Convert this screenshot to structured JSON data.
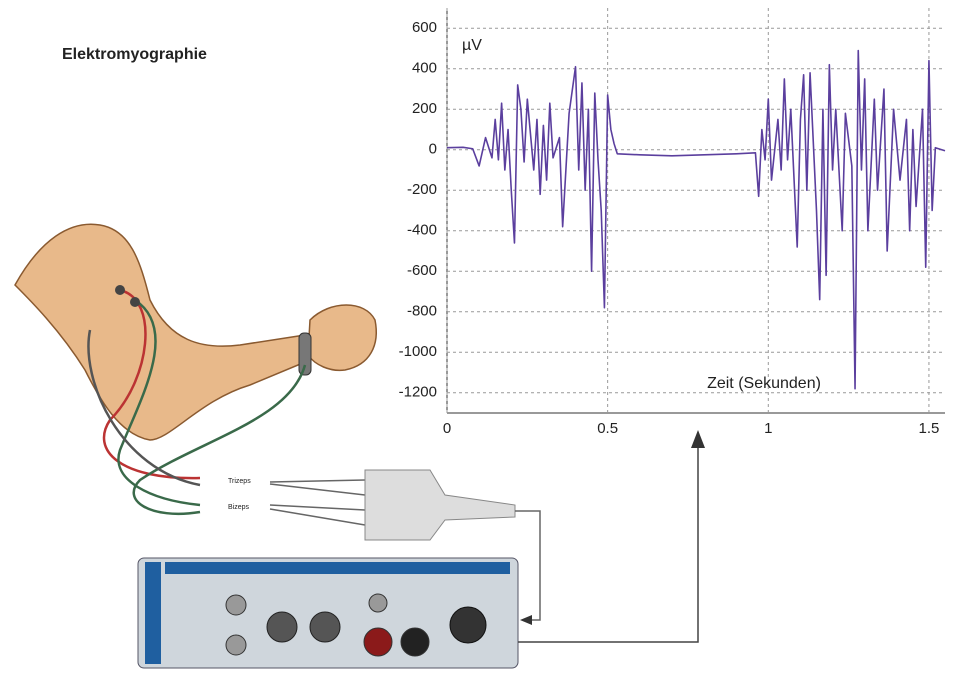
{
  "chart_data": {
    "type": "line",
    "title": "Elektromyographie",
    "y_label": "µV",
    "x_label": "Zeit (Sekunden)",
    "annotations": [
      "Trizeps",
      "Bizeps"
    ],
    "color": "#5b3f9e",
    "grid": true,
    "xlim": [
      0,
      1.55
    ],
    "ylim": [
      -1300,
      700
    ],
    "xticks": [
      0,
      0.5,
      1,
      1.5
    ],
    "yticks": [
      600,
      400,
      200,
      0,
      -200,
      -400,
      -600,
      -800,
      -1000,
      -1200
    ],
    "x": [
      0,
      0.05,
      0.08,
      0.1,
      0.12,
      0.14,
      0.15,
      0.16,
      0.17,
      0.18,
      0.19,
      0.2,
      0.21,
      0.22,
      0.23,
      0.24,
      0.25,
      0.27,
      0.28,
      0.29,
      0.3,
      0.31,
      0.32,
      0.33,
      0.35,
      0.36,
      0.37,
      0.38,
      0.4,
      0.41,
      0.42,
      0.43,
      0.44,
      0.45,
      0.46,
      0.47,
      0.48,
      0.49,
      0.5,
      0.51,
      0.52,
      0.53,
      0.6,
      0.7,
      0.8,
      0.9,
      0.96,
      0.97,
      0.98,
      0.99,
      1.0,
      1.01,
      1.03,
      1.04,
      1.05,
      1.06,
      1.07,
      1.09,
      1.1,
      1.11,
      1.12,
      1.13,
      1.15,
      1.16,
      1.17,
      1.18,
      1.19,
      1.2,
      1.21,
      1.23,
      1.24,
      1.26,
      1.27,
      1.28,
      1.29,
      1.3,
      1.31,
      1.33,
      1.34,
      1.36,
      1.37,
      1.39,
      1.41,
      1.43,
      1.44,
      1.45,
      1.46,
      1.48,
      1.49,
      1.5,
      1.51,
      1.52,
      1.55
    ],
    "values": [
      10,
      12,
      5,
      -80,
      60,
      -40,
      150,
      -50,
      230,
      -100,
      100,
      -200,
      -460,
      320,
      200,
      -60,
      250,
      -100,
      150,
      -220,
      120,
      -150,
      230,
      -40,
      60,
      -380,
      -100,
      180,
      410,
      -100,
      330,
      -200,
      200,
      -600,
      280,
      -50,
      -300,
      -780,
      270,
      100,
      30,
      -20,
      -25,
      -30,
      -25,
      -20,
      -15,
      -230,
      100,
      -50,
      250,
      -150,
      150,
      -100,
      350,
      -50,
      200,
      -480,
      150,
      370,
      -200,
      380,
      -300,
      -740,
      200,
      -620,
      420,
      -100,
      200,
      -400,
      180,
      -80,
      -1180,
      490,
      -100,
      350,
      -400,
      250,
      -200,
      300,
      -500,
      200,
      -150,
      150,
      -400,
      100,
      -280,
      200,
      -580,
      440,
      -300,
      10,
      -5
    ]
  }
}
